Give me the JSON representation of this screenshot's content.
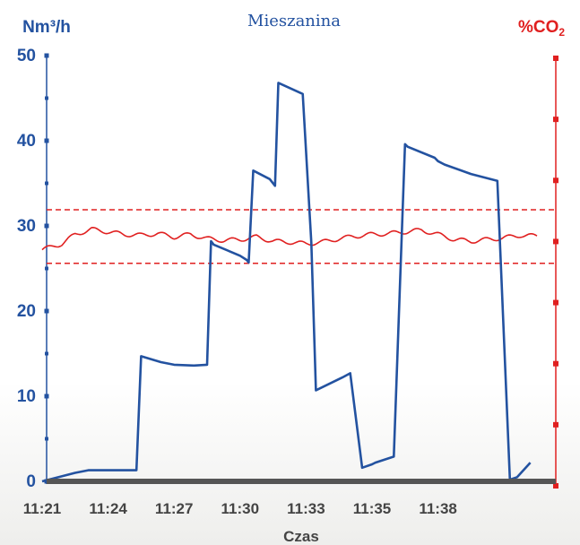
{
  "chart_data": {
    "type": "line",
    "title": "Mieszanina",
    "xlabel": "Czas",
    "ylabel_left": "Nm³/h",
    "ylabel_right_main": "%CO",
    "ylabel_right_sub": "2",
    "ylim": [
      0,
      50
    ],
    "y_ticks": [
      "0",
      "10",
      "20",
      "30",
      "40",
      "50"
    ],
    "x_ticks": [
      "11:21",
      "11:24",
      "11:27",
      "11:30",
      "11:33",
      "11:35",
      "11:38"
    ],
    "colors": {
      "flow": "#2352a0",
      "co2": "#e02020",
      "baseline": "#555555",
      "axis_left": "#2352a0",
      "axis_right": "#e02020"
    },
    "series": [
      {
        "id": "flow",
        "x": [
          0,
          0.5,
          0.7,
          0.75,
          1.43,
          1.5,
          1.8,
          2.0,
          2.3,
          2.5,
          2.56,
          2.6,
          3.0,
          3.1,
          3.13,
          3.2,
          3.45,
          3.53,
          3.58,
          3.95,
          4.08,
          4.15,
          4.55,
          4.67,
          4.85,
          5.0,
          5.05,
          5.33,
          5.5,
          5.54,
          5.95,
          6.0,
          6.1,
          6.5,
          6.9,
          7.09,
          7.2,
          7.4
        ],
        "y": [
          0,
          1,
          1.3,
          1.3,
          1.3,
          14.7,
          14.0,
          13.7,
          13.6,
          13.7,
          28.2,
          27.8,
          26.5,
          26.0,
          25.7,
          36.5,
          35.5,
          34.7,
          46.8,
          45.5,
          28.0,
          10.7,
          12.2,
          12.7,
          1.6,
          2.0,
          2.2,
          2.9,
          39.6,
          39.3,
          38.0,
          37.6,
          37.2,
          36.1,
          35.3,
          0.2,
          0.5,
          2.2
        ]
      },
      {
        "id": "co2",
        "x": [
          0,
          0.3,
          0.5,
          0.75,
          1.0,
          1.25,
          1.5,
          1.75,
          2.0,
          2.25,
          2.5,
          2.75,
          3.0,
          3.25,
          3.5,
          3.75,
          4.0,
          4.25,
          4.5,
          4.75,
          5.0,
          5.25,
          5.5,
          5.75,
          6.0,
          6.25,
          6.5,
          6.75,
          7.0,
          7.25,
          7.5
        ],
        "y": [
          27.2,
          27.9,
          29.0,
          29.6,
          29.3,
          29.0,
          28.9,
          29.1,
          28.7,
          29.0,
          28.5,
          28.3,
          28.4,
          28.7,
          28.2,
          28.1,
          27.9,
          28.1,
          28.5,
          28.8,
          29.0,
          29.1,
          29.3,
          29.5,
          29.0,
          28.4,
          28.2,
          28.4,
          28.6,
          28.9,
          28.8
        ]
      }
    ],
    "limits": [
      31.9,
      25.6
    ]
  }
}
